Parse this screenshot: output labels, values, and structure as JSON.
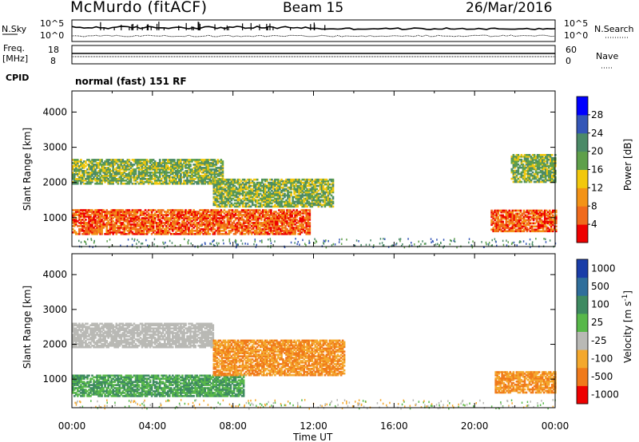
{
  "header": {
    "station": "McMurdo (fitACF)",
    "beam": "Beam 15",
    "date": "26/Mar/2016",
    "mode": "normal (fast) 151 RF"
  },
  "top_panels": {
    "nsky_label": "N.Sky",
    "nsearch_label": "N.Search",
    "noise_ticks_left": [
      "10^5",
      "10^0"
    ],
    "noise_ticks_right": [
      "10^5",
      "10^0"
    ],
    "freq_label": "Freq.",
    "freq_unit": "[MHz]",
    "freq_ticks": [
      "18",
      "8"
    ],
    "nave_label": "Nave",
    "nave_ticks": [
      "60",
      "0"
    ],
    "cpid_label": "CPID"
  },
  "chart_data": [
    {
      "type": "heatmap",
      "name": "power",
      "ylabel": "Slant Range [km]",
      "xlabel": "Time UT",
      "y_ticks": [
        1000,
        2000,
        3000,
        4000
      ],
      "ylim": [
        180,
        4600
      ],
      "xlim_hours": [
        0,
        24
      ],
      "colorbar": {
        "label": "Power [dB]",
        "ticks": [
          4,
          8,
          12,
          16,
          20,
          24,
          28
        ],
        "colors": [
          "#0000ff",
          "#3456b7",
          "#4b8a67",
          "#5fa04a",
          "#f2c80d",
          "#f39316",
          "#f06a1c",
          "#ee0000"
        ]
      },
      "echo_regions": [
        {
          "t": [
            0.0,
            11.8
          ],
          "range": [
            520,
            1200
          ],
          "level": "high",
          "note": "strong scatter band"
        },
        {
          "t": [
            0.0,
            7.5
          ],
          "range": [
            1950,
            2650
          ],
          "level": "medium"
        },
        {
          "t": [
            7.0,
            13.0
          ],
          "range": [
            1300,
            2100
          ],
          "level": "medium"
        },
        {
          "t": [
            20.8,
            24.0
          ],
          "range": [
            600,
            1200
          ],
          "level": "high"
        },
        {
          "t": [
            21.8,
            24.0
          ],
          "range": [
            2000,
            2800
          ],
          "level": "medium"
        }
      ]
    },
    {
      "type": "heatmap",
      "name": "velocity",
      "ylabel": "Slant Range [km]",
      "xlabel": "Time UT",
      "y_ticks": [
        1000,
        2000,
        3000,
        4000
      ],
      "ylim": [
        180,
        4600
      ],
      "xlim_hours": [
        0,
        24
      ],
      "colorbar": {
        "label": "Velocity [m s^-1]",
        "ticks": [
          "1000",
          "500",
          "100",
          "25",
          "-25",
          "-100",
          "-500",
          "-1000"
        ],
        "colors": [
          "#1a3da8",
          "#2f6e9b",
          "#3e8a61",
          "#58b84a",
          "#b9b9b5",
          "#f4a82d",
          "#f07a1b",
          "#ee0000"
        ]
      },
      "echo_regions": [
        {
          "t": [
            0.0,
            8.5
          ],
          "range": [
            500,
            1100
          ],
          "level": "positive"
        },
        {
          "t": [
            0.0,
            7.0
          ],
          "range": [
            1900,
            2600
          ],
          "level": "near-zero"
        },
        {
          "t": [
            7.0,
            13.5
          ],
          "range": [
            1100,
            2100
          ],
          "level": "negative"
        },
        {
          "t": [
            21.0,
            24.0
          ],
          "range": [
            600,
            1200
          ],
          "level": "negative"
        }
      ]
    }
  ],
  "time_axis": {
    "ticks": [
      "00:00",
      "04:00",
      "08:00",
      "12:00",
      "16:00",
      "20:00",
      "00:00"
    ],
    "label": "Time UT"
  }
}
